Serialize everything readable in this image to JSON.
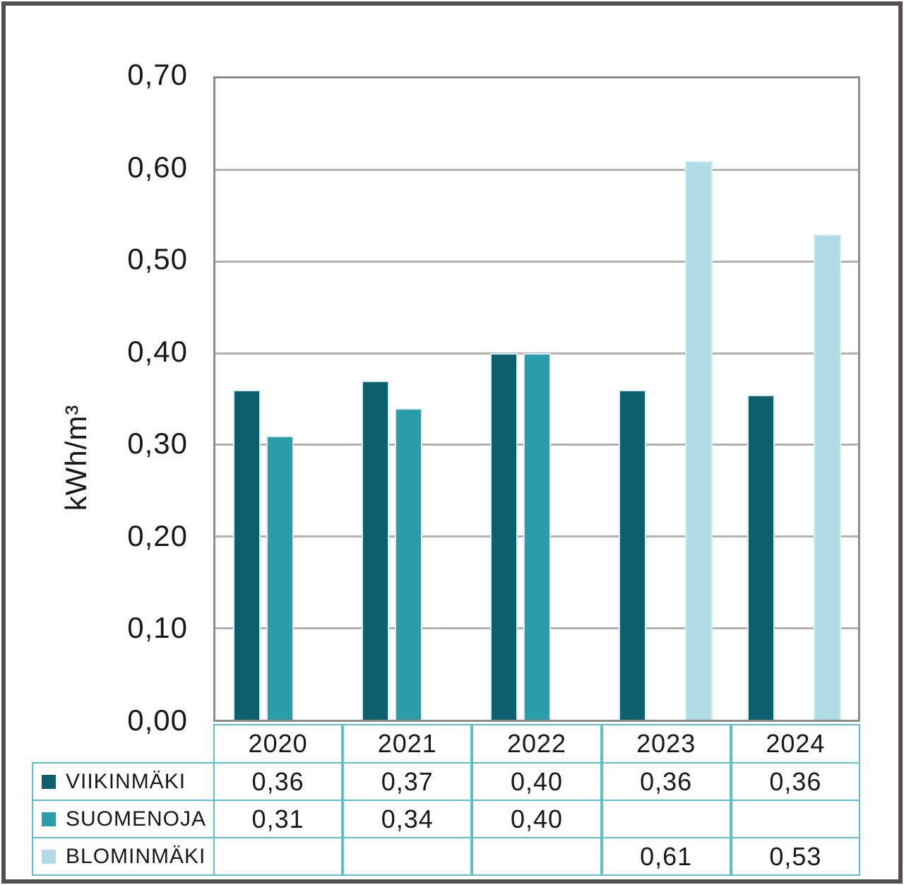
{
  "colors": {
    "viikinmaki": "#0d5f6d",
    "suomenoja": "#2b9caa",
    "blominmaki": "#b1dbe5",
    "bar_edge": "#d9ecf1",
    "gridline": "#b3b0b0",
    "plot_border": "#8f8a8a",
    "table_border": "#5cc1cd",
    "text": "#181818",
    "frame": "#555050"
  },
  "chart_data": {
    "type": "bar",
    "title": "",
    "xlabel": "",
    "ylabel": "kWh/m³",
    "ylim": [
      0,
      0.7
    ],
    "ytick_step": 0.1,
    "ytick_labels": [
      "0,00",
      "0,10",
      "0,20",
      "0,30",
      "0,40",
      "0,50",
      "0,60",
      "0,70"
    ],
    "grid": true,
    "legend_position": "table-left",
    "categories": [
      "2020",
      "2021",
      "2022",
      "2023",
      "2024"
    ],
    "series": [
      {
        "name": "VIIKINMÄKI",
        "color_key": "viikinmaki",
        "values": [
          0.36,
          0.37,
          0.4,
          0.36,
          0.355
        ],
        "cell_labels": [
          "0,36",
          "0,37",
          "0,40",
          "0,36",
          "0,36"
        ]
      },
      {
        "name": "SUOMENOJA",
        "color_key": "suomenoja",
        "values": [
          0.31,
          0.34,
          0.4,
          null,
          null
        ],
        "cell_labels": [
          "0,31",
          "0,34",
          "0,40",
          "",
          ""
        ]
      },
      {
        "name": "BLOMINMÄKI",
        "color_key": "blominmaki",
        "values": [
          null,
          null,
          null,
          0.61,
          0.53
        ],
        "cell_labels": [
          "",
          "",
          "",
          "0,61",
          "0,53"
        ]
      }
    ]
  }
}
